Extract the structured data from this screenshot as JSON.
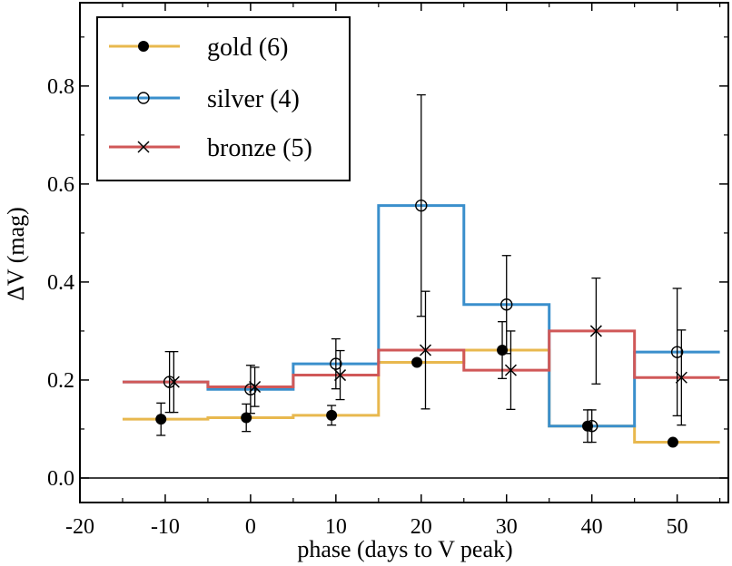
{
  "chart_data": {
    "type": "line",
    "title": "",
    "xlabel": "phase (days to V peak)",
    "ylabel": "ΔV (mag)",
    "xlim": [
      -20,
      56
    ],
    "ylim": [
      -0.05,
      0.97
    ],
    "xticks": [
      -20,
      -10,
      0,
      10,
      20,
      30,
      40,
      50
    ],
    "xtick_labels": [
      "-20",
      "-10",
      "0",
      "10",
      "20",
      "30",
      "40",
      "50"
    ],
    "yticks": [
      0.0,
      0.2,
      0.4,
      0.6,
      0.8
    ],
    "ytick_labels": [
      "0.0",
      "0.2",
      "0.4",
      "0.6",
      "0.8"
    ],
    "reference_line_y": 0.0,
    "legend_position": "top-left",
    "bin_edges": [
      -15,
      -5,
      5,
      15,
      25,
      35,
      45,
      55
    ],
    "series": [
      {
        "name": "gold (6)",
        "color": "#e8b84e",
        "marker": "filled-circle",
        "step_values": [
          0.12,
          0.123,
          0.128,
          0.236,
          0.261,
          0.106,
          0.073
        ],
        "points": [
          {
            "x": -10.5,
            "y": 0.12,
            "err": 0.033
          },
          {
            "x": -0.5,
            "y": 0.123,
            "err": 0.028
          },
          {
            "x": 9.5,
            "y": 0.128,
            "err": 0.02
          },
          {
            "x": 19.5,
            "y": 0.236,
            "err": 0.0
          },
          {
            "x": 29.5,
            "y": 0.261,
            "err": 0.058
          },
          {
            "x": 39.5,
            "y": 0.106,
            "err": 0.033
          },
          {
            "x": 49.5,
            "y": 0.073,
            "err": 0.0
          }
        ]
      },
      {
        "name": "silver (4)",
        "color": "#3a8fcc",
        "marker": "open-circle",
        "step_values": [
          0.196,
          0.181,
          0.233,
          0.556,
          0.354,
          0.106,
          0.257
        ],
        "points": [
          {
            "x": -9.5,
            "y": 0.196,
            "err": 0.062
          },
          {
            "x": 0,
            "y": 0.181,
            "err": 0.049
          },
          {
            "x": 10,
            "y": 0.233,
            "err": 0.051
          },
          {
            "x": 20,
            "y": 0.556,
            "err": 0.226
          },
          {
            "x": 30,
            "y": 0.354,
            "err": 0.1
          },
          {
            "x": 40,
            "y": 0.106,
            "err": 0.033
          },
          {
            "x": 50,
            "y": 0.257,
            "err": 0.13
          }
        ]
      },
      {
        "name": "bronze (5)",
        "color": "#d05858",
        "marker": "x",
        "step_values": [
          0.196,
          0.186,
          0.21,
          0.261,
          0.22,
          0.3,
          0.205
        ],
        "points": [
          {
            "x": -9,
            "y": 0.196,
            "err": 0.062
          },
          {
            "x": 0.5,
            "y": 0.186,
            "err": 0.04
          },
          {
            "x": 10.5,
            "y": 0.21,
            "err": 0.05
          },
          {
            "x": 20.5,
            "y": 0.261,
            "err": 0.12
          },
          {
            "x": 30.5,
            "y": 0.22,
            "err": 0.08
          },
          {
            "x": 40.5,
            "y": 0.3,
            "err": 0.108
          },
          {
            "x": 50.5,
            "y": 0.205,
            "err": 0.097
          }
        ]
      }
    ]
  }
}
